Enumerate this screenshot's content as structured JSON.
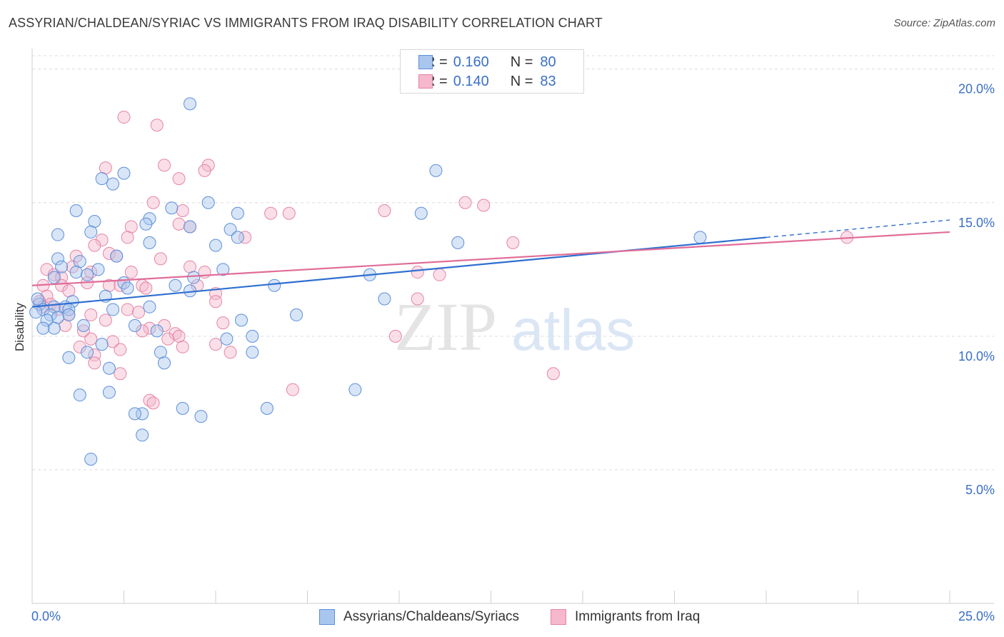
{
  "title": "ASSYRIAN/CHALDEAN/SYRIAC VS IMMIGRANTS FROM IRAQ DISABILITY CORRELATION CHART",
  "source": "Source: ZipAtlas.com",
  "watermark": {
    "zip": "ZIP",
    "atlas": "atlas"
  },
  "legend": {
    "r_label": "R =",
    "n_label": "N =",
    "series1": {
      "r": "0.160",
      "n": "80"
    },
    "series2": {
      "r": "0.140",
      "n": "83"
    }
  },
  "colors": {
    "blue_fill": "#a9c6ee",
    "blue_stroke": "#5b8fd9",
    "blue_line": "#2f6fd0",
    "pink_fill": "#f5b8cd",
    "pink_stroke": "#e584a6",
    "pink_line": "#e06d98",
    "axis_text": "#3a6fc9",
    "grid": "#dcdcdc"
  },
  "chart_data": {
    "type": "scatter",
    "title": "ASSYRIAN/CHALDEAN/SYRIAC VS IMMIGRANTS FROM IRAQ DISABILITY CORRELATION CHART",
    "xlabel": "",
    "ylabel": "Disability",
    "xlim": [
      0,
      25
    ],
    "ylim": [
      0,
      20.5
    ],
    "x_tick_labels": [
      "0.0%",
      "25.0%"
    ],
    "y_ticks": [
      5,
      10,
      15,
      20
    ],
    "y_tick_labels": [
      "5.0%",
      "10.0%",
      "15.0%",
      "20.0%"
    ],
    "series": [
      {
        "name": "Assyrians/Chaldeans/Syriacs",
        "trend": {
          "x0": 0,
          "y0": 11.1,
          "x1": 20,
          "y1": 13.7,
          "x_dash_end": 25,
          "y_dash_end": 14.35
        },
        "points": [
          [
            4.3,
            18.7
          ],
          [
            11.0,
            16.2
          ],
          [
            2.5,
            16.1
          ],
          [
            1.9,
            15.9
          ],
          [
            2.2,
            15.7
          ],
          [
            4.8,
            15.0
          ],
          [
            1.2,
            14.7
          ],
          [
            3.8,
            14.8
          ],
          [
            5.6,
            14.6
          ],
          [
            10.6,
            14.6
          ],
          [
            1.7,
            14.3
          ],
          [
            3.2,
            14.4
          ],
          [
            3.1,
            14.2
          ],
          [
            4.3,
            14.1
          ],
          [
            5.4,
            14.0
          ],
          [
            0.7,
            13.8
          ],
          [
            1.6,
            13.9
          ],
          [
            5.6,
            13.7
          ],
          [
            3.2,
            13.5
          ],
          [
            5.0,
            13.4
          ],
          [
            11.6,
            13.5
          ],
          [
            18.2,
            13.7
          ],
          [
            2.3,
            13.0
          ],
          [
            0.7,
            12.9
          ],
          [
            1.3,
            12.8
          ],
          [
            1.8,
            12.5
          ],
          [
            5.2,
            12.5
          ],
          [
            1.2,
            12.4
          ],
          [
            1.5,
            12.3
          ],
          [
            9.2,
            12.3
          ],
          [
            0.6,
            12.2
          ],
          [
            4.4,
            12.2
          ],
          [
            2.5,
            12.0
          ],
          [
            3.9,
            11.9
          ],
          [
            6.6,
            11.9
          ],
          [
            2.0,
            11.5
          ],
          [
            9.6,
            11.4
          ],
          [
            1.1,
            11.3
          ],
          [
            0.2,
            11.2
          ],
          [
            0.6,
            11.1
          ],
          [
            0.9,
            11.1
          ],
          [
            1.0,
            11.0
          ],
          [
            3.2,
            11.1
          ],
          [
            0.3,
            11.0
          ],
          [
            0.1,
            10.9
          ],
          [
            0.5,
            10.8
          ],
          [
            1.0,
            10.8
          ],
          [
            2.2,
            11.0
          ],
          [
            0.7,
            10.7
          ],
          [
            0.4,
            10.6
          ],
          [
            7.2,
            10.8
          ],
          [
            5.7,
            10.6
          ],
          [
            0.6,
            10.3
          ],
          [
            1.4,
            10.4
          ],
          [
            0.3,
            10.3
          ],
          [
            2.8,
            10.4
          ],
          [
            3.4,
            10.2
          ],
          [
            6.0,
            10.0
          ],
          [
            5.3,
            9.9
          ],
          [
            3.5,
            9.4
          ],
          [
            1.5,
            9.4
          ],
          [
            6.0,
            9.4
          ],
          [
            1.0,
            9.2
          ],
          [
            3.6,
            9.0
          ],
          [
            2.1,
            8.8
          ],
          [
            2.1,
            7.9
          ],
          [
            1.3,
            7.8
          ],
          [
            8.8,
            8.0
          ],
          [
            3.0,
            7.1
          ],
          [
            2.8,
            7.1
          ],
          [
            4.1,
            7.3
          ],
          [
            6.4,
            7.3
          ],
          [
            4.6,
            7.0
          ],
          [
            3.0,
            6.3
          ],
          [
            1.6,
            5.4
          ],
          [
            1.9,
            9.7
          ],
          [
            0.8,
            12.6
          ],
          [
            4.3,
            11.7
          ],
          [
            2.6,
            11.8
          ],
          [
            0.15,
            11.4
          ]
        ]
      },
      {
        "name": "Immigrants from Iraq",
        "trend": {
          "x0": 0,
          "y0": 11.9,
          "x1": 25,
          "y1": 13.9
        },
        "points": [
          [
            2.5,
            18.2
          ],
          [
            3.4,
            17.9
          ],
          [
            3.6,
            16.4
          ],
          [
            4.8,
            16.4
          ],
          [
            2.0,
            16.3
          ],
          [
            4.7,
            16.2
          ],
          [
            4.0,
            15.9
          ],
          [
            3.3,
            15.0
          ],
          [
            11.8,
            15.0
          ],
          [
            12.3,
            14.9
          ],
          [
            9.6,
            14.7
          ],
          [
            4.1,
            14.7
          ],
          [
            6.5,
            14.6
          ],
          [
            7.0,
            14.6
          ],
          [
            4.0,
            14.2
          ],
          [
            4.3,
            14.1
          ],
          [
            2.7,
            14.1
          ],
          [
            2.6,
            13.7
          ],
          [
            5.8,
            13.7
          ],
          [
            1.9,
            13.6
          ],
          [
            1.7,
            13.4
          ],
          [
            13.1,
            13.5
          ],
          [
            22.2,
            13.7
          ],
          [
            2.1,
            13.1
          ],
          [
            2.3,
            13.0
          ],
          [
            1.2,
            13.0
          ],
          [
            3.5,
            12.9
          ],
          [
            1.1,
            12.6
          ],
          [
            4.3,
            12.6
          ],
          [
            0.4,
            12.5
          ],
          [
            1.6,
            12.4
          ],
          [
            2.7,
            12.4
          ],
          [
            4.7,
            12.4
          ],
          [
            0.6,
            12.3
          ],
          [
            10.5,
            12.4
          ],
          [
            11.1,
            12.3
          ],
          [
            0.8,
            12.2
          ],
          [
            1.5,
            12.0
          ],
          [
            0.3,
            11.9
          ],
          [
            0.8,
            11.9
          ],
          [
            2.1,
            11.9
          ],
          [
            2.4,
            11.9
          ],
          [
            3.0,
            11.9
          ],
          [
            3.1,
            11.8
          ],
          [
            4.5,
            11.9
          ],
          [
            1.0,
            11.7
          ],
          [
            5.0,
            11.6
          ],
          [
            0.4,
            11.5
          ],
          [
            10.5,
            11.4
          ],
          [
            5.0,
            11.3
          ],
          [
            0.2,
            11.3
          ],
          [
            0.5,
            11.2
          ],
          [
            0.3,
            11.1
          ],
          [
            0.7,
            11.0
          ],
          [
            2.6,
            11.0
          ],
          [
            1.0,
            10.8
          ],
          [
            1.6,
            10.8
          ],
          [
            2.0,
            10.6
          ],
          [
            5.2,
            10.5
          ],
          [
            3.6,
            10.4
          ],
          [
            3.2,
            10.3
          ],
          [
            3.0,
            10.2
          ],
          [
            1.4,
            10.2
          ],
          [
            3.9,
            10.1
          ],
          [
            4.0,
            10.0
          ],
          [
            3.7,
            9.9
          ],
          [
            9.9,
            10.0
          ],
          [
            1.6,
            9.9
          ],
          [
            2.2,
            9.8
          ],
          [
            1.3,
            9.6
          ],
          [
            2.4,
            9.5
          ],
          [
            1.7,
            9.3
          ],
          [
            5.4,
            9.4
          ],
          [
            1.7,
            9.0
          ],
          [
            2.4,
            8.6
          ],
          [
            14.2,
            8.6
          ],
          [
            7.1,
            8.0
          ],
          [
            3.2,
            7.6
          ],
          [
            3.3,
            7.5
          ],
          [
            5.0,
            9.7
          ],
          [
            0.9,
            10.4
          ],
          [
            2.9,
            10.9
          ],
          [
            4.1,
            9.6
          ]
        ]
      }
    ],
    "legend": [
      "Assyrians/Chaldeans/Syriacs",
      "Immigrants from Iraq"
    ]
  }
}
